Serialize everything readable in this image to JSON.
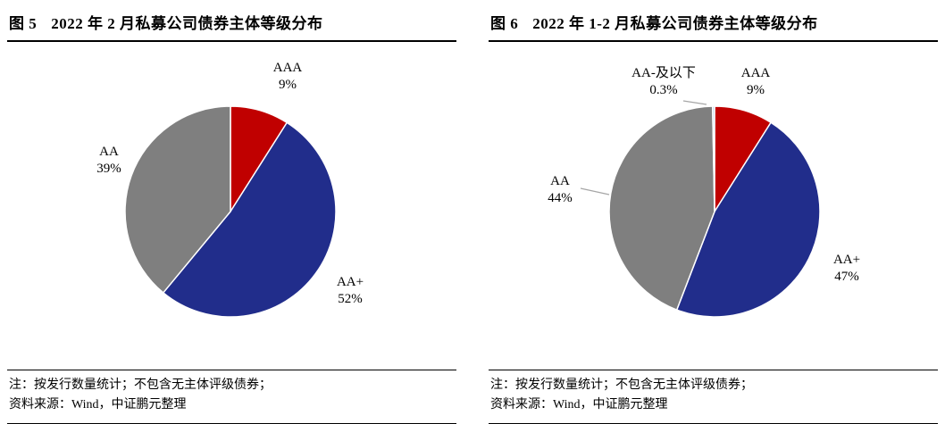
{
  "page": {
    "background": "#ffffff"
  },
  "colors": {
    "red": "#C00000",
    "navy": "#212D8B",
    "gray": "#7F7F7F",
    "lightblue": "#9DC3E6",
    "leader_line": "#A6A6A6"
  },
  "charts": [
    {
      "title_prefix": "图 5",
      "title_text": "2022 年 2 月私募公司债券主体等级分布",
      "pie_labels": [
        {
          "name": "AAA",
          "value": "9%"
        },
        {
          "name": "AA",
          "value": "39%"
        },
        {
          "name": "AA+",
          "value": "52%"
        }
      ],
      "notes": [
        "注：按发行数量统计；不包含无主体评级债券；",
        "资料来源：Wind，中证鹏元整理"
      ]
    },
    {
      "title_prefix": "图 6",
      "title_text": "2022 年 1-2 月私募公司债券主体等级分布",
      "pie_labels": [
        {
          "name": "AA-及以下",
          "value": "0.3%"
        },
        {
          "name": "AAA",
          "value": "9%"
        },
        {
          "name": "AA",
          "value": "44%"
        },
        {
          "name": "AA+",
          "value": "47%"
        }
      ],
      "notes": [
        "注：按发行数量统计；不包含无主体评级债券；",
        "资料来源：Wind，中证鹏元整理"
      ]
    }
  ],
  "chart_data": [
    {
      "type": "pie",
      "title": "图 5 2022 年 2 月私募公司债券主体等级分布",
      "labels": [
        "AAA",
        "AA+",
        "AA"
      ],
      "values": [
        9,
        52,
        39
      ],
      "unit": "percent",
      "colors": [
        "#C00000",
        "#212D8B",
        "#7F7F7F"
      ],
      "start_angle_deg": -90,
      "direction": "clockwise",
      "legend": "none",
      "data_labels": "outside"
    },
    {
      "type": "pie",
      "title": "图 6 2022 年 1-2 月私募公司债券主体等级分布",
      "labels": [
        "AAA",
        "AA+",
        "AA",
        "AA-及以下"
      ],
      "values": [
        9,
        47,
        44,
        0.3
      ],
      "unit": "percent",
      "colors": [
        "#C00000",
        "#212D8B",
        "#7F7F7F",
        "#9DC3E6"
      ],
      "start_angle_deg": -90,
      "direction": "clockwise",
      "legend": "none",
      "data_labels": "outside"
    }
  ]
}
